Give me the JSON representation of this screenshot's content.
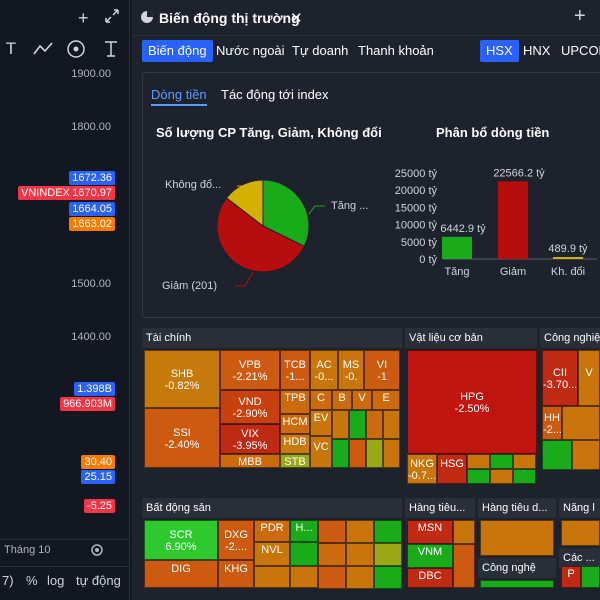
{
  "left_chart": {
    "price_ticks": [
      "1900.00",
      "1800.00",
      "1500.00",
      "1400.00"
    ],
    "symbol": "VNINDEX",
    "price_labels": [
      {
        "value": "1672.36",
        "color": "#2962ff"
      },
      {
        "value": "1670.97",
        "color": "#f23645"
      },
      {
        "value": "1664.05",
        "color": "#2962ff"
      },
      {
        "value": "1663.02",
        "color": "#f57c00"
      }
    ],
    "vol_labels": [
      {
        "value": "1.398B",
        "color": "#2962ff"
      },
      {
        "value": "966.903M",
        "color": "#f23645"
      }
    ],
    "ind_labels": [
      {
        "value": "30.40",
        "color": "#f57c00"
      },
      {
        "value": "25.15",
        "color": "#2962ff"
      },
      {
        "value": "-5.25",
        "color": "#f23645"
      }
    ],
    "month_label": "Tháng 10",
    "bottom_bar": {
      "paren": "7)",
      "pct": "%",
      "log": "log",
      "auto": "tự động"
    },
    "toolbar_icons": [
      "text-tool-icon",
      "trend-line-icon",
      "eye-icon",
      "anchor-text-icon"
    ]
  },
  "panel": {
    "title": "Biến động thị trường",
    "tabs": [
      {
        "label": "Biến động",
        "active": true
      },
      {
        "label": "Nước ngoài",
        "active": false
      },
      {
        "label": "Tự doanh",
        "active": false
      },
      {
        "label": "Thanh khoản",
        "active": false
      }
    ],
    "exchanges": [
      {
        "label": "HSX",
        "active": true
      },
      {
        "label": "HNX",
        "active": false
      },
      {
        "label": "UPCOM",
        "active": false
      }
    ],
    "subtabs": [
      {
        "label": "Dòng tiền",
        "active": true
      },
      {
        "label": "Tác động tới index",
        "active": false
      }
    ],
    "pie_title": "Số lượng CP Tăng, Giảm, Không đổi",
    "pie_labels": {
      "no_change": "Không đổ...",
      "up": "Tăng ...",
      "down": "Giảm (201)"
    },
    "bar_title": "Phân bổ dòng tiền"
  },
  "chart_data": [
    {
      "type": "pie",
      "title": "Số lượng CP Tăng, Giảm, Không đổi",
      "labels": [
        "Tăng",
        "Giảm",
        "Không đổi"
      ],
      "values": [
        122,
        201,
        55
      ],
      "colors": [
        "#1aab1a",
        "#b80d0d",
        "#d4b000"
      ]
    },
    {
      "type": "bar",
      "title": "Phân bổ dòng tiền",
      "categories": [
        "Tăng",
        "Giảm",
        "Kh. đổi"
      ],
      "values": [
        6442.9,
        22566.2,
        489.9
      ],
      "value_labels": [
        "6442.9 tỷ",
        "22566.2 tỷ",
        "489.9 tỷ"
      ],
      "colors": [
        "#1aab1a",
        "#b80d0d",
        "#d4b000"
      ],
      "ylim": [
        0,
        25000
      ],
      "yticks": [
        "0 tỷ",
        "5000 tỷ",
        "10000 tỷ",
        "15000 tỷ",
        "20000 tỷ",
        "25000 tỷ"
      ]
    }
  ],
  "treemap": {
    "sectors": [
      {
        "name": "Tài chính"
      },
      {
        "name": "Vật liệu cơ bản"
      },
      {
        "name": "Công nghiệ"
      },
      {
        "name": "Bất động sản"
      },
      {
        "name": "Hàng tiêu..."
      },
      {
        "name": "Hàng tiêu d..."
      },
      {
        "name": "Năng l"
      },
      {
        "name": "Công nghệ"
      },
      {
        "name": "Các ..."
      }
    ],
    "tiles": [
      {
        "t": "SHB",
        "c": "-0.82%",
        "col": "#c77a0c"
      },
      {
        "t": "SSI",
        "c": "-2.40%",
        "col": "#cc5a10"
      },
      {
        "t": "VPB",
        "c": "-2.21%",
        "col": "#cc5a10"
      },
      {
        "t": "VND",
        "c": "-2.90%",
        "col": "#c8400e"
      },
      {
        "t": "VIX",
        "c": "-3.95%",
        "col": "#c12a12"
      },
      {
        "t": "MBB",
        "c": "",
        "col": "#cc6a0e"
      },
      {
        "t": "TCB",
        "c": "-1...",
        "col": "#cc5a10"
      },
      {
        "t": "TPB",
        "c": "",
        "col": "#cc6a0e"
      },
      {
        "t": "HCM",
        "c": "",
        "col": "#cc6a0e"
      },
      {
        "t": "HDB",
        "c": "",
        "col": "#c97a0c"
      },
      {
        "t": "STB",
        "c": "",
        "col": "#9aa815"
      },
      {
        "t": "AC",
        "c": "-0...",
        "col": "#c8750c"
      },
      {
        "t": "MS",
        "c": "-0.",
        "col": "#c8750c"
      },
      {
        "t": "VI",
        "c": "-1",
        "col": "#cc5a10"
      },
      {
        "t": "C",
        "c": "",
        "col": "#cc6a0e"
      },
      {
        "t": "B",
        "c": "",
        "col": "#cc6a0e"
      },
      {
        "t": "V",
        "c": "",
        "col": "#cc6a0e"
      },
      {
        "t": "E",
        "c": "",
        "col": "#cc6a0e"
      },
      {
        "t": "EV",
        "c": "",
        "col": "#c8750c"
      },
      {
        "t": "VC",
        "c": "",
        "col": "#c8750c"
      },
      {
        "t": "HPG",
        "c": "-2.50%",
        "col": "#c0160f"
      },
      {
        "t": "NKG",
        "c": "-0.7...",
        "col": "#c8750c"
      },
      {
        "t": "HSG",
        "c": "",
        "col": "#c12a12"
      },
      {
        "t": "CII",
        "c": "-3.70...",
        "col": "#c12a12"
      },
      {
        "t": "V",
        "c": "",
        "col": "#c8750c"
      },
      {
        "t": "HH",
        "c": "-2...",
        "col": "#cc5a10"
      },
      {
        "t": "SCR",
        "c": "6.90%",
        "col": "#2ec92e"
      },
      {
        "t": "DIG",
        "c": "",
        "col": "#cc5a10"
      },
      {
        "t": "DXG",
        "c": "-2....",
        "col": "#cc5a10"
      },
      {
        "t": "KHG",
        "c": "",
        "col": "#cc5a10"
      },
      {
        "t": "PDR",
        "c": "",
        "col": "#cc6a0e"
      },
      {
        "t": "NVL",
        "c": "",
        "col": "#c8750c"
      },
      {
        "t": "H...",
        "c": "",
        "col": "#1aab1a"
      },
      {
        "t": "MSN",
        "c": "",
        "col": "#c12a12"
      },
      {
        "t": "VNM",
        "c": "",
        "col": "#1aab1a"
      },
      {
        "t": "DBC",
        "c": "",
        "col": "#c12a12"
      },
      {
        "t": "P",
        "c": "",
        "col": "#c12a12"
      }
    ]
  },
  "colors": {
    "accent": "#2962ff",
    "up": "#1aab1a",
    "down": "#b80d0d",
    "nochange": "#d4b000"
  }
}
